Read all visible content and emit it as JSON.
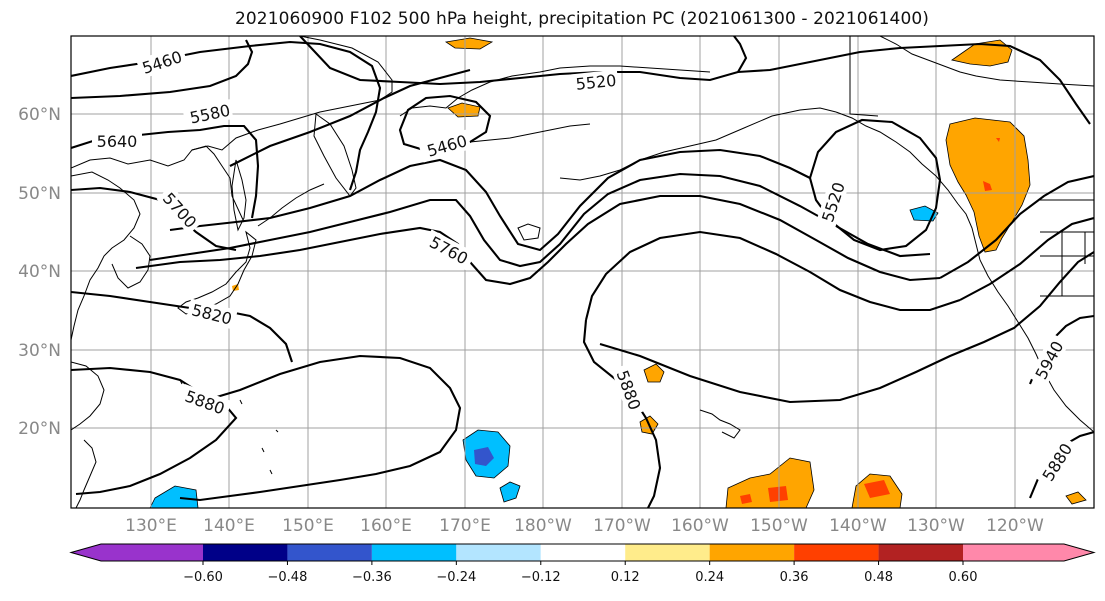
{
  "title": "2021060900 F102 500 hPa height, precipitation PC (2021061300 - 2021061400)",
  "lat_labels": [
    "60°N",
    "50°N",
    "40°N",
    "30°N",
    "20°N"
  ],
  "lon_labels": [
    "130°E",
    "140°E",
    "150°E",
    "160°E",
    "170°E",
    "180°W",
    "170°W",
    "160°W",
    "150°W",
    "140°W",
    "130°W",
    "120°W"
  ],
  "contour_labels": [
    "5460",
    "5520",
    "5580",
    "5640",
    "5460",
    "5700",
    "5760",
    "5520",
    "5820",
    "5880",
    "5880",
    "5940",
    "5880"
  ],
  "colorbar": {
    "colors": [
      "#9933cc",
      "#000088",
      "#3355cc",
      "#00bfff",
      "#b3e5ff",
      "#ffffff",
      "#ffec8b",
      "#ffa500",
      "#ff4000",
      "#b22222",
      "#ff88aa"
    ],
    "tick_labels": [
      "−0.60",
      "−0.48",
      "−0.36",
      "−0.24",
      "−0.12",
      "0.12",
      "0.24",
      "0.36",
      "0.48",
      "0.60"
    ]
  },
  "colors": {
    "positive": "#ffa500",
    "strong_positive": "#ff4000",
    "negative": "#00bfff",
    "strong_negative": "#3355cc"
  }
}
